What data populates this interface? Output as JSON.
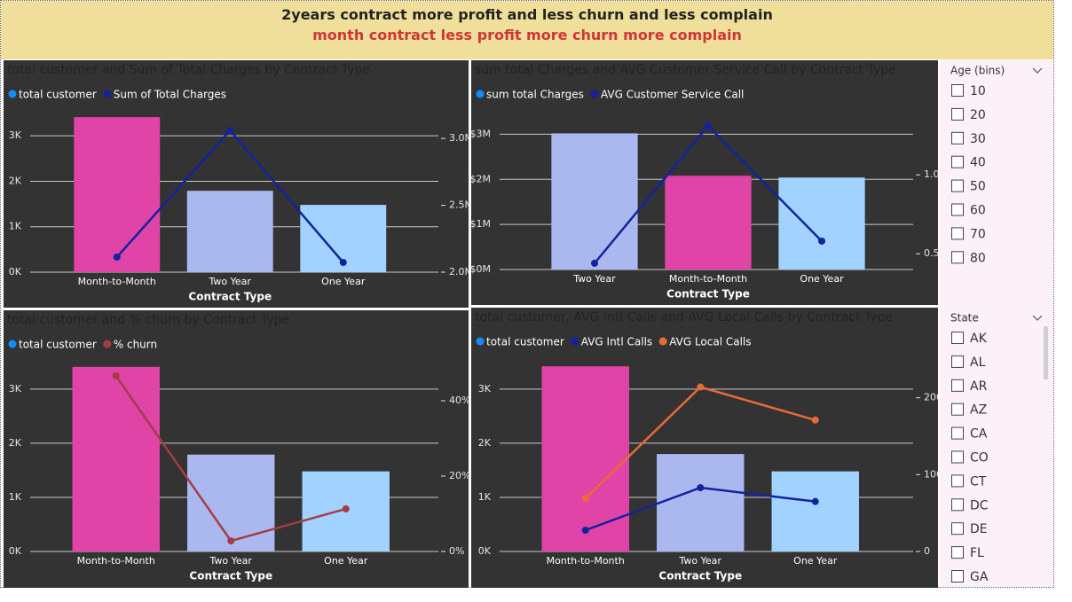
{
  "header": {
    "title": "2years contract more profit and less churn and less complain",
    "subtitle": "month contract less profit more churn more complain"
  },
  "chart_data": [
    {
      "type": "combo",
      "title": "total customer and Sum of Total Charges by Contract Type",
      "x_label": "Contract Type",
      "categories": [
        "Month-to-Month",
        "Two Year",
        "One Year"
      ],
      "series": [
        {
          "name": "total customer",
          "color": "#118dff",
          "point_colors": [
            "#e044a7",
            "#aab8ef",
            "#a2d2ff"
          ],
          "values": [
            3410,
            1790,
            1480
          ]
        },
        {
          "name": "Sum of Total Charges",
          "color": "#12239e",
          "axis": "y2",
          "values": [
            2113000,
            3060000,
            2073000
          ]
        }
      ],
      "ylim": [
        0,
        3530
      ],
      "yticks": [
        {
          "value": 0,
          "label": "0K"
        },
        {
          "value": 1000,
          "label": "1K"
        },
        {
          "value": 2000,
          "label": "2K"
        },
        {
          "value": 3000,
          "label": "3K"
        }
      ],
      "y2lim": [
        2000000,
        3200000
      ],
      "y2ticks": [
        {
          "value": 2000000,
          "label": "2.0M"
        },
        {
          "value": 2500000,
          "label": "2.5M"
        },
        {
          "value": 3000000,
          "label": "3.0M"
        }
      ],
      "grid": true
    },
    {
      "type": "combo",
      "title": "sum total Charges and AVG Customer Service Call by Contract Type",
      "x_label": "Contract Type",
      "categories": [
        "Two Year",
        "Month-to-Month",
        "One Year"
      ],
      "series": [
        {
          "name": "sum total Charges",
          "color": "#118dff",
          "point_colors": [
            "#aab8ef",
            "#e044a7",
            "#a2d2ff"
          ],
          "values": [
            3020000,
            2080000,
            2040000
          ]
        },
        {
          "name": "AVG Customer Service Call",
          "color": "#12239e",
          "axis": "y2",
          "values": [
            0.44,
            1.31,
            0.58
          ]
        }
      ],
      "ylim": [
        0,
        3500000
      ],
      "yticks": [
        {
          "value": 0,
          "label": "$0M"
        },
        {
          "value": 1000000,
          "label": "$1M"
        },
        {
          "value": 2000000,
          "label": "$2M"
        },
        {
          "value": 3000000,
          "label": "$3M"
        }
      ],
      "y2lim": [
        0.4,
        1.4
      ],
      "y2ticks": [
        0.5,
        {
          "value": 1,
          "label": "1.0"
        }
      ],
      "grid": true
    },
    {
      "type": "combo",
      "title": "total customer and % churn by Contract Type",
      "x_label": "Contract Type",
      "categories": [
        "Month-to-Month",
        "Two Year",
        "One Year"
      ],
      "series": [
        {
          "name": "total customer",
          "color": "#118dff",
          "point_colors": [
            "#e044a7",
            "#aab8ef",
            "#a2d2ff"
          ],
          "values": [
            3410,
            1790,
            1480
          ]
        },
        {
          "name": "% churn",
          "color": "#a33c45",
          "axis": "y2",
          "values": [
            46.6,
            2.8,
            11.3
          ]
        }
      ],
      "ylim": [
        0,
        3620
      ],
      "yticks": [
        {
          "value": 0,
          "label": "0K"
        },
        {
          "value": 1000,
          "label": "1K"
        },
        {
          "value": 2000,
          "label": "2K"
        },
        {
          "value": 3000,
          "label": "3K"
        }
      ],
      "y2lim": [
        0,
        52
      ],
      "y2ticks": [
        {
          "value": 0,
          "label": "0%"
        },
        {
          "value": 20,
          "label": "20%"
        },
        {
          "value": 40,
          "label": "40%"
        }
      ],
      "grid": true
    },
    {
      "type": "combo",
      "title": "total customer, AVG Intl Calls and AVG Local Calls by Contract Type",
      "x_label": "Contract Type",
      "categories": [
        "Month-to-Month",
        "Two Year",
        "One Year"
      ],
      "series": [
        {
          "name": "total customer",
          "color": "#118dff",
          "point_colors": [
            "#e044a7",
            "#aab8ef",
            "#a2d2ff"
          ],
          "values": [
            3420,
            1800,
            1480
          ]
        },
        {
          "name": "AVG Intl Calls",
          "color": "#12239e",
          "axis": "y2",
          "values": [
            27.7,
            83,
            65
          ]
        },
        {
          "name": "AVG Local Calls",
          "color": "#e66c37",
          "axis": "y2",
          "values": [
            69,
            214,
            171
          ]
        }
      ],
      "ylim": [
        0,
        3620
      ],
      "yticks": [
        {
          "value": 0,
          "label": "0K"
        },
        {
          "value": 1000,
          "label": "1K"
        },
        {
          "value": 2000,
          "label": "2K"
        },
        {
          "value": 3000,
          "label": "3K"
        }
      ],
      "y2lim": [
        0,
        255
      ],
      "y2ticks": [
        0,
        100,
        200
      ],
      "grid": true
    }
  ],
  "slicers": [
    {
      "title": "Age (bins)",
      "items": [
        "10",
        "20",
        "30",
        "40",
        "50",
        "60",
        "70",
        "80"
      ]
    },
    {
      "title": "State",
      "items": [
        "AK",
        "AL",
        "AR",
        "AZ",
        "CA",
        "CO",
        "CT",
        "DC",
        "DE",
        "FL",
        "GA"
      ]
    }
  ]
}
